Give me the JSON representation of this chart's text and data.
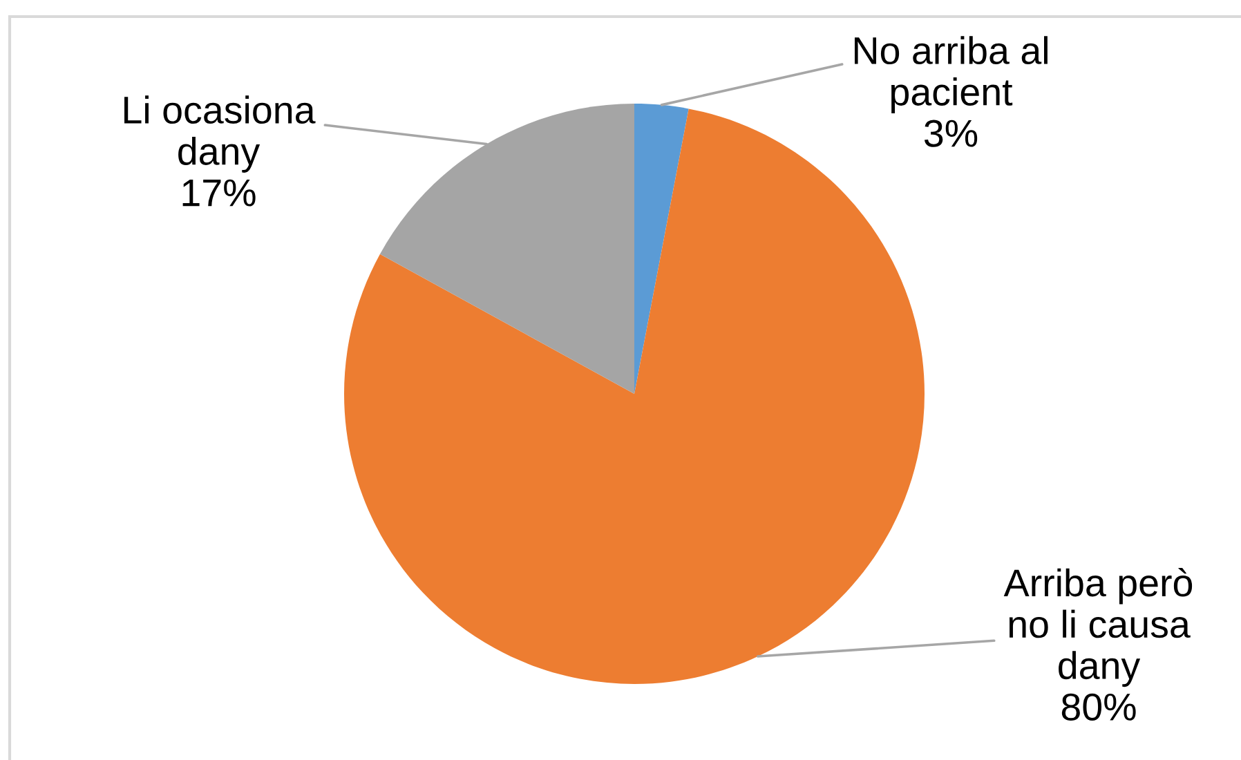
{
  "chart_data": {
    "type": "pie",
    "categories": [
      "No arriba al\npacient",
      "Arriba però\nno li causa\ndany",
      "Li ocasiona\ndany"
    ],
    "values": [
      3,
      80,
      17
    ],
    "value_labels": [
      "3%",
      "80%",
      "17%"
    ],
    "colors": [
      "#5b9bd5",
      "#ed7d31",
      "#a5a5a5"
    ]
  }
}
